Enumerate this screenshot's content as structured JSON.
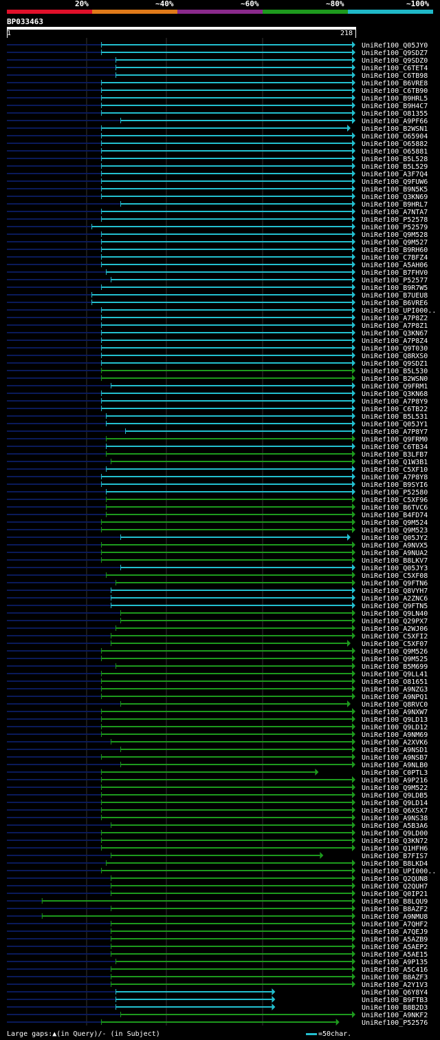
{
  "legend": {
    "items": [
      {
        "label": "20%",
        "color": "#e0102a"
      },
      {
        "label": "~40%",
        "color": "#e07a1a"
      },
      {
        "label": "~60%",
        "color": "#8a2a8c"
      },
      {
        "label": "~80%",
        "color": "#1e9a1e"
      },
      {
        "label": "~100%",
        "color": "#20b8c8"
      }
    ]
  },
  "query": {
    "name": "BP033463",
    "start": "1",
    "end": "218"
  },
  "colors": {
    "cyan": "#23c0d0",
    "green": "#1d9a1d",
    "dark": "#0a1a5a",
    "grid": "#333333"
  },
  "hits": [
    {
      "label": "UniRef100_Q05JY0",
      "color": "cyan",
      "start": 60,
      "end": 218
    },
    {
      "label": "UniRef100_Q9SDZ7",
      "color": "cyan",
      "start": 60,
      "end": 218
    },
    {
      "label": "UniRef100_Q9SDZ0",
      "color": "cyan",
      "start": 69,
      "end": 218
    },
    {
      "label": "UniRef100_C6TET4",
      "color": "cyan",
      "start": 69,
      "end": 218
    },
    {
      "label": "UniRef100_C6TB98",
      "color": "cyan",
      "start": 69,
      "end": 218
    },
    {
      "label": "UniRef100_B6VRE8",
      "color": "cyan",
      "start": 60,
      "end": 218
    },
    {
      "label": "UniRef100_C6TB90",
      "color": "cyan",
      "start": 60,
      "end": 218
    },
    {
      "label": "UniRef100_B9HRL5",
      "color": "cyan",
      "start": 60,
      "end": 218
    },
    {
      "label": "UniRef100_B9H4C7",
      "color": "cyan",
      "start": 60,
      "end": 218
    },
    {
      "label": "UniRef100_O81355",
      "color": "cyan",
      "start": 60,
      "end": 218
    },
    {
      "label": "UniRef100_A9PF66",
      "color": "cyan",
      "start": 72,
      "end": 218
    },
    {
      "label": "UniRef100_B2WSN1",
      "color": "cyan",
      "start": 60,
      "end": 215
    },
    {
      "label": "UniRef100_O65904",
      "color": "cyan",
      "start": 60,
      "end": 218
    },
    {
      "label": "UniRef100_O65882",
      "color": "cyan",
      "start": 60,
      "end": 218
    },
    {
      "label": "UniRef100_O65881",
      "color": "cyan",
      "start": 60,
      "end": 218
    },
    {
      "label": "UniRef100_B5L528",
      "color": "cyan",
      "start": 60,
      "end": 218
    },
    {
      "label": "UniRef100_B5L529",
      "color": "cyan",
      "start": 60,
      "end": 218
    },
    {
      "label": "UniRef100_A3F7Q4",
      "color": "cyan",
      "start": 60,
      "end": 218
    },
    {
      "label": "UniRef100_Q9FUW6",
      "color": "cyan",
      "start": 60,
      "end": 218
    },
    {
      "label": "UniRef100_B9N5K5",
      "color": "cyan",
      "start": 60,
      "end": 218
    },
    {
      "label": "UniRef100_Q3KN69",
      "color": "cyan",
      "start": 60,
      "end": 218
    },
    {
      "label": "UniRef100_B9HRL7",
      "color": "cyan",
      "start": 72,
      "end": 218
    },
    {
      "label": "UniRef100_A7NTA7",
      "color": "cyan",
      "start": 60,
      "end": 218
    },
    {
      "label": "UniRef100_P52578",
      "color": "cyan",
      "start": 60,
      "end": 218
    },
    {
      "label": "UniRef100_P52579",
      "color": "cyan",
      "start": 54,
      "end": 218
    },
    {
      "label": "UniRef100_Q9M528",
      "color": "cyan",
      "start": 60,
      "end": 218
    },
    {
      "label": "UniRef100_Q9M527",
      "color": "cyan",
      "start": 60,
      "end": 218
    },
    {
      "label": "UniRef100_B9RH60",
      "color": "cyan",
      "start": 60,
      "end": 218
    },
    {
      "label": "UniRef100_C7BFZ4",
      "color": "cyan",
      "start": 60,
      "end": 218
    },
    {
      "label": "UniRef100_A5AH06",
      "color": "cyan",
      "start": 60,
      "end": 218
    },
    {
      "label": "UniRef100_B7FHV0",
      "color": "cyan",
      "start": 63,
      "end": 218
    },
    {
      "label": "UniRef100_P52577",
      "color": "cyan",
      "start": 66,
      "end": 218
    },
    {
      "label": "UniRef100_B9R7W5",
      "color": "cyan",
      "start": 60,
      "end": 218
    },
    {
      "label": "UniRef100_B7UEU8",
      "color": "cyan",
      "start": 54,
      "end": 218
    },
    {
      "label": "UniRef100_B6VRE6",
      "color": "cyan",
      "start": 54,
      "end": 218
    },
    {
      "label": "UniRef100_UPI000..",
      "color": "cyan",
      "start": 60,
      "end": 218
    },
    {
      "label": "UniRef100_A7P8Z2",
      "color": "cyan",
      "start": 60,
      "end": 218
    },
    {
      "label": "UniRef100_A7P8Z1",
      "color": "cyan",
      "start": 60,
      "end": 218
    },
    {
      "label": "UniRef100_Q3KN67",
      "color": "cyan",
      "start": 60,
      "end": 218
    },
    {
      "label": "UniRef100_A7P8Z4",
      "color": "cyan",
      "start": 60,
      "end": 218
    },
    {
      "label": "UniRef100_Q9T030",
      "color": "cyan",
      "start": 60,
      "end": 218
    },
    {
      "label": "UniRef100_Q8RXS0",
      "color": "cyan",
      "start": 60,
      "end": 218
    },
    {
      "label": "UniRef100_Q9SDZ1",
      "color": "cyan",
      "start": 60,
      "end": 218
    },
    {
      "label": "UniRef100_B5L530",
      "color": "green",
      "start": 60,
      "end": 218
    },
    {
      "label": "UniRef100_B2WSN0",
      "color": "green",
      "start": 60,
      "end": 218
    },
    {
      "label": "UniRef100_Q9FRM1",
      "color": "cyan",
      "start": 66,
      "end": 218
    },
    {
      "label": "UniRef100_Q3KN68",
      "color": "cyan",
      "start": 60,
      "end": 218
    },
    {
      "label": "UniRef100_A7P8Y9",
      "color": "cyan",
      "start": 60,
      "end": 218
    },
    {
      "label": "UniRef100_C6TB22",
      "color": "cyan",
      "start": 60,
      "end": 218
    },
    {
      "label": "UniRef100_B5L531",
      "color": "cyan",
      "start": 63,
      "end": 218
    },
    {
      "label": "UniRef100_Q05JY1",
      "color": "cyan",
      "start": 63,
      "end": 218
    },
    {
      "label": "UniRef100_A7P8Y7",
      "color": "cyan",
      "start": 75,
      "end": 218
    },
    {
      "label": "UniRef100_Q9FRM0",
      "color": "green",
      "start": 63,
      "end": 218
    },
    {
      "label": "UniRef100_C6TB34",
      "color": "cyan",
      "start": 63,
      "end": 218
    },
    {
      "label": "UniRef100_B3LFB7",
      "color": "green",
      "start": 63,
      "end": 218
    },
    {
      "label": "UniRef100_Q1W3B1",
      "color": "green",
      "start": 66,
      "end": 218
    },
    {
      "label": "UniRef100_C5XF10",
      "color": "cyan",
      "start": 63,
      "end": 218
    },
    {
      "label": "UniRef100_A7P8Y8",
      "color": "cyan",
      "start": 60,
      "end": 218
    },
    {
      "label": "UniRef100_B9SYI6",
      "color": "cyan",
      "start": 60,
      "end": 218
    },
    {
      "label": "UniRef100_P52580",
      "color": "cyan",
      "start": 63,
      "end": 218
    },
    {
      "label": "UniRef100_C5XF96",
      "color": "green",
      "start": 63,
      "end": 218
    },
    {
      "label": "UniRef100_B6TVC6",
      "color": "green",
      "start": 63,
      "end": 218
    },
    {
      "label": "UniRef100_B4FD74",
      "color": "green",
      "start": 63,
      "end": 218
    },
    {
      "label": "UniRef100_Q9M524",
      "color": "green",
      "start": 60,
      "end": 218
    },
    {
      "label": "UniRef100_Q9M523",
      "color": "green",
      "start": 60,
      "end": 218
    },
    {
      "label": "UniRef100_Q05JY2",
      "color": "cyan",
      "start": 72,
      "end": 215
    },
    {
      "label": "UniRef100_A9NVX5",
      "color": "green",
      "start": 60,
      "end": 218
    },
    {
      "label": "UniRef100_A9NUA2",
      "color": "green",
      "start": 60,
      "end": 218
    },
    {
      "label": "UniRef100_B8LKV7",
      "color": "green",
      "start": 60,
      "end": 218
    },
    {
      "label": "UniRef100_Q05JY3",
      "color": "cyan",
      "start": 72,
      "end": 218
    },
    {
      "label": "UniRef100_C5XF08",
      "color": "green",
      "start": 63,
      "end": 218
    },
    {
      "label": "UniRef100_Q9FTN6",
      "color": "green",
      "start": 69,
      "end": 218
    },
    {
      "label": "UniRef100_Q8VYH7",
      "color": "cyan",
      "start": 66,
      "end": 218
    },
    {
      "label": "UniRef100_A2ZNC6",
      "color": "cyan",
      "start": 66,
      "end": 218
    },
    {
      "label": "UniRef100_Q9FTN5",
      "color": "cyan",
      "start": 66,
      "end": 218
    },
    {
      "label": "UniRef100_Q9LN40",
      "color": "green",
      "start": 72,
      "end": 218
    },
    {
      "label": "UniRef100_Q29PX7",
      "color": "green",
      "start": 72,
      "end": 218
    },
    {
      "label": "UniRef100_A2WJ06",
      "color": "green",
      "start": 69,
      "end": 218
    },
    {
      "label": "UniRef100_C5XFI2",
      "color": "green",
      "start": 66,
      "end": 218
    },
    {
      "label": "UniRef100_C5XF07",
      "color": "green",
      "start": 66,
      "end": 215
    },
    {
      "label": "UniRef100_Q9M526",
      "color": "green",
      "start": 60,
      "end": 218
    },
    {
      "label": "UniRef100_Q9M525",
      "color": "green",
      "start": 60,
      "end": 218
    },
    {
      "label": "UniRef100_B5M699",
      "color": "green",
      "start": 69,
      "end": 218
    },
    {
      "label": "UniRef100_Q9LL41",
      "color": "green",
      "start": 60,
      "end": 218
    },
    {
      "label": "UniRef100_O81651",
      "color": "green",
      "start": 60,
      "end": 218
    },
    {
      "label": "UniRef100_A9NZG3",
      "color": "green",
      "start": 60,
      "end": 218
    },
    {
      "label": "UniRef100_A9NPQ1",
      "color": "green",
      "start": 60,
      "end": 218
    },
    {
      "label": "UniRef100_Q8RVC0",
      "color": "green",
      "start": 72,
      "end": 215
    },
    {
      "label": "UniRef100_A9NXW7",
      "color": "green",
      "start": 60,
      "end": 218
    },
    {
      "label": "UniRef100_Q9LD13",
      "color": "green",
      "start": 60,
      "end": 218
    },
    {
      "label": "UniRef100_Q9LD12",
      "color": "green",
      "start": 60,
      "end": 218
    },
    {
      "label": "UniRef100_A9NM69",
      "color": "green",
      "start": 60,
      "end": 218
    },
    {
      "label": "UniRef100_A2XVK6",
      "color": "green",
      "start": 66,
      "end": 218
    },
    {
      "label": "UniRef100_A9NSD1",
      "color": "green",
      "start": 72,
      "end": 218
    },
    {
      "label": "UniRef100_A9NSB7",
      "color": "green",
      "start": 60,
      "end": 218
    },
    {
      "label": "UniRef100_A9NLB0",
      "color": "green",
      "start": 72,
      "end": 218
    },
    {
      "label": "UniRef100_C0PTL3",
      "color": "green",
      "start": 60,
      "end": 195
    },
    {
      "label": "UniRef100_A9P216",
      "color": "green",
      "start": 60,
      "end": 218
    },
    {
      "label": "UniRef100_Q9M522",
      "color": "green",
      "start": 60,
      "end": 218
    },
    {
      "label": "UniRef100_Q9LDB5",
      "color": "green",
      "start": 60,
      "end": 218
    },
    {
      "label": "UniRef100_Q9LD14",
      "color": "green",
      "start": 60,
      "end": 218
    },
    {
      "label": "UniRef100_Q6XSX7",
      "color": "green",
      "start": 60,
      "end": 218
    },
    {
      "label": "UniRef100_A9NS38",
      "color": "green",
      "start": 60,
      "end": 218
    },
    {
      "label": "UniRef100_A5B3A6",
      "color": "green",
      "start": 66,
      "end": 218
    },
    {
      "label": "UniRef100_Q9LD00",
      "color": "green",
      "start": 60,
      "end": 218
    },
    {
      "label": "UniRef100_Q3KN72",
      "color": "green",
      "start": 60,
      "end": 218
    },
    {
      "label": "UniRef100_Q1HFH6",
      "color": "green",
      "start": 60,
      "end": 218
    },
    {
      "label": "UniRef100_B7FIS7",
      "color": "green",
      "start": 66,
      "end": 198
    },
    {
      "label": "UniRef100_B8LKD4",
      "color": "green",
      "start": 63,
      "end": 218
    },
    {
      "label": "UniRef100_UPI000..",
      "color": "green",
      "start": 60,
      "end": 218
    },
    {
      "label": "UniRef100_Q2QUN8",
      "color": "green",
      "start": 66,
      "end": 218
    },
    {
      "label": "UniRef100_Q2QUH7",
      "color": "green",
      "start": 66,
      "end": 218
    },
    {
      "label": "UniRef100_Q0IP21",
      "color": "green",
      "start": 66,
      "end": 218
    },
    {
      "label": "UniRef100_B8LQU9",
      "color": "green",
      "start": 23,
      "end": 218
    },
    {
      "label": "UniRef100_B8AZF2",
      "color": "green",
      "start": 66,
      "end": 218
    },
    {
      "label": "UniRef100_A9NMU8",
      "color": "green",
      "start": 23,
      "end": 218
    },
    {
      "label": "UniRef100_A7QHF2",
      "color": "green",
      "start": 66,
      "end": 218
    },
    {
      "label": "UniRef100_A7QEJ9",
      "color": "green",
      "start": 66,
      "end": 218
    },
    {
      "label": "UniRef100_A5AZB9",
      "color": "green",
      "start": 66,
      "end": 218
    },
    {
      "label": "UniRef100_A5AEP2",
      "color": "green",
      "start": 66,
      "end": 218
    },
    {
      "label": "UniRef100_A5AE15",
      "color": "green",
      "start": 66,
      "end": 218
    },
    {
      "label": "UniRef100_A9P135",
      "color": "green",
      "start": 69,
      "end": 218
    },
    {
      "label": "UniRef100_A5C416",
      "color": "green",
      "start": 66,
      "end": 218
    },
    {
      "label": "UniRef100_B8AZF3",
      "color": "green",
      "start": 66,
      "end": 218
    },
    {
      "label": "UniRef100_A2Y1V3",
      "color": "green",
      "start": 66,
      "end": 218
    },
    {
      "label": "UniRef100_Q6Y8Y4",
      "color": "cyan",
      "start": 69,
      "end": 168
    },
    {
      "label": "UniRef100_B9FTB3",
      "color": "cyan",
      "start": 69,
      "end": 168
    },
    {
      "label": "UniRef100_B8B2D3",
      "color": "cyan",
      "start": 69,
      "end": 168
    },
    {
      "label": "UniRef100_A9NKF2",
      "color": "green",
      "start": 72,
      "end": 218
    },
    {
      "label": "UniRef100_P52576",
      "color": "green",
      "start": 60,
      "end": 208
    }
  ],
  "footer": {
    "gaps_text": "Large gaps:▲(in Query)/- (in Subject)",
    "scale_text": "=50char."
  }
}
